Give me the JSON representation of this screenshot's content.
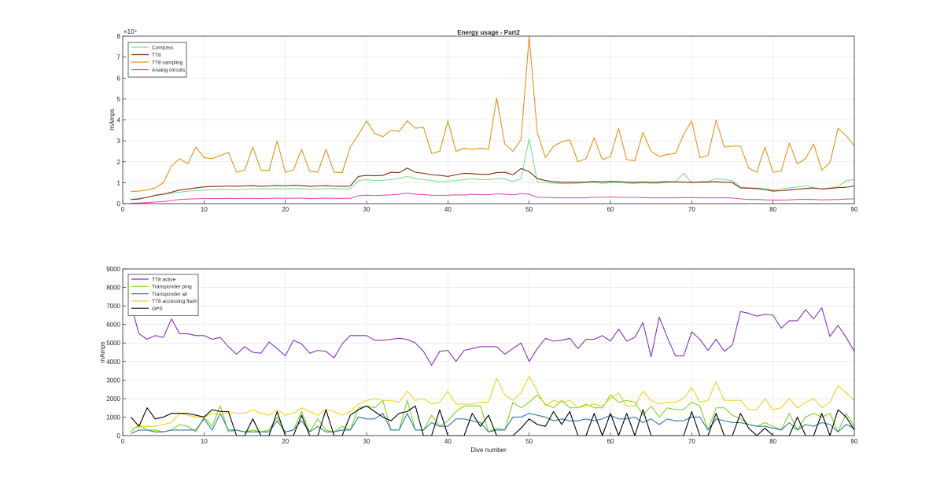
{
  "chart_data": [
    {
      "type": "line",
      "title": "Energy usage - Part2",
      "xlabel": "",
      "ylabel": "mAmps",
      "xlim": [
        0,
        90
      ],
      "ylim": [
        0,
        80000
      ],
      "yexponent_label": "×10⁴",
      "xticks": [
        0,
        10,
        20,
        30,
        40,
        50,
        60,
        70,
        80,
        90
      ],
      "yticks": [
        0,
        10000,
        20000,
        30000,
        40000,
        50000,
        60000,
        70000,
        80000
      ],
      "ytick_labels": [
        "0",
        "1",
        "2",
        "3",
        "4",
        "5",
        "6",
        "7",
        "8"
      ],
      "grid": true,
      "legend_position": "top-left",
      "x": [
        1,
        2,
        3,
        4,
        5,
        6,
        7,
        8,
        9,
        10,
        11,
        12,
        13,
        14,
        15,
        16,
        17,
        18,
        19,
        20,
        21,
        22,
        23,
        24,
        25,
        26,
        27,
        28,
        29,
        30,
        31,
        32,
        33,
        34,
        35,
        36,
        37,
        38,
        39,
        40,
        41,
        42,
        43,
        44,
        45,
        46,
        47,
        48,
        49,
        50,
        51,
        52,
        53,
        54,
        55,
        56,
        57,
        58,
        59,
        60,
        61,
        62,
        63,
        64,
        65,
        66,
        67,
        68,
        69,
        70,
        71,
        72,
        73,
        74,
        75,
        76,
        77,
        78,
        79,
        80,
        81,
        82,
        83,
        84,
        85,
        86,
        87,
        88,
        89,
        90
      ],
      "series": [
        {
          "name": "Compass",
          "color": "#7ee08a",
          "values": [
            2000,
            2500,
            3000,
            4000,
            4500,
            5000,
            5500,
            6000,
            6200,
            6500,
            6600,
            6800,
            6700,
            6600,
            6900,
            7000,
            7000,
            7100,
            7200,
            7000,
            7100,
            7200,
            6900,
            7000,
            7100,
            7200,
            7000,
            7000,
            11000,
            11500,
            11000,
            11200,
            11500,
            12000,
            13000,
            12000,
            11500,
            11000,
            10500,
            10800,
            11000,
            11500,
            11800,
            11500,
            11500,
            11800,
            12000,
            10500,
            12000,
            31000,
            10500,
            10000,
            9800,
            9600,
            9500,
            9800,
            10000,
            10200,
            9700,
            10000,
            10200,
            9800,
            9600,
            10000,
            9800,
            9800,
            10200,
            10500,
            14500,
            10000,
            10500,
            10600,
            12000,
            11500,
            11000,
            8000,
            7500,
            7500,
            7000,
            6500,
            7000,
            7500,
            8000,
            8500,
            7500,
            7000,
            7500,
            8000,
            11000,
            11500
          ]
        },
        {
          "name": "TT8",
          "color": "#7a2e0e",
          "values": [
            2000,
            2200,
            3000,
            4000,
            4500,
            5500,
            6500,
            7000,
            7500,
            8000,
            8200,
            8300,
            8400,
            8300,
            8500,
            8600,
            8300,
            8500,
            8700,
            8500,
            8800,
            8600,
            8300,
            8500,
            8600,
            8400,
            8300,
            8400,
            13000,
            13500,
            13300,
            13500,
            15000,
            14800,
            17000,
            15000,
            14500,
            13800,
            13500,
            13000,
            13800,
            14500,
            14300,
            14000,
            14000,
            14800,
            15000,
            13800,
            16800,
            15300,
            12000,
            11000,
            10500,
            10200,
            10300,
            10200,
            10300,
            10600,
            10400,
            10600,
            10500,
            10300,
            10200,
            10300,
            10100,
            10300,
            10500,
            10400,
            10300,
            10200,
            10200,
            10300,
            10500,
            10200,
            10100,
            7500,
            7400,
            7200,
            6800,
            6000,
            6200,
            6500,
            6900,
            7200,
            7500,
            7000,
            7300,
            7600,
            7800,
            8500
          ]
        },
        {
          "name": "TT8 sampling",
          "color": "#e8911c",
          "values": [
            5800,
            6000,
            6500,
            7500,
            10000,
            18000,
            21500,
            19000,
            27000,
            22000,
            21500,
            23000,
            24500,
            15000,
            16000,
            27000,
            16000,
            15800,
            30000,
            15000,
            16000,
            26000,
            15500,
            15000,
            26000,
            15000,
            14800,
            27000,
            33000,
            39500,
            33500,
            32000,
            35000,
            34500,
            39500,
            36000,
            36500,
            24000,
            25000,
            39500,
            25000,
            26500,
            26000,
            26500,
            26000,
            50500,
            28500,
            25000,
            30500,
            80000,
            34000,
            22000,
            27500,
            29500,
            30500,
            20000,
            21500,
            31500,
            21000,
            22500,
            36000,
            21000,
            20500,
            34000,
            25000,
            22500,
            23500,
            24000,
            33000,
            39500,
            22000,
            23000,
            40000,
            27000,
            27500,
            27500,
            17000,
            15000,
            27000,
            15000,
            15500,
            29000,
            19000,
            21500,
            28500,
            16000,
            19500,
            36000,
            32500,
            27500
          ]
        },
        {
          "name": "Analog circuits",
          "color": "#e24fb8",
          "values": [
            200,
            300,
            500,
            800,
            1000,
            1500,
            2000,
            2200,
            2300,
            2400,
            2400,
            2400,
            2500,
            2400,
            2500,
            2500,
            2400,
            2500,
            2600,
            2500,
            2600,
            2600,
            2400,
            2500,
            2600,
            2500,
            2500,
            2500,
            3800,
            4000,
            3900,
            4000,
            4200,
            4500,
            5000,
            4500,
            4300,
            4000,
            3900,
            4000,
            4200,
            4100,
            4500,
            4300,
            4300,
            4700,
            4500,
            4200,
            4800,
            4500,
            3000,
            3000,
            2800,
            2800,
            2800,
            2800,
            2800,
            3000,
            3000,
            3200,
            3000,
            3000,
            3000,
            2900,
            2800,
            2800,
            2800,
            2800,
            2900,
            2900,
            2800,
            2800,
            2800,
            2800,
            2700,
            2300,
            2000,
            2000,
            1800,
            1700,
            1700,
            1800,
            2000,
            2100,
            2000,
            1800,
            1900,
            2000,
            2200,
            2300
          ]
        }
      ]
    },
    {
      "type": "line",
      "title": "",
      "xlabel": "Dive number",
      "ylabel": "mAmps",
      "xlim": [
        0,
        90
      ],
      "ylim": [
        0,
        9000
      ],
      "xticks": [
        0,
        10,
        20,
        30,
        40,
        50,
        60,
        70,
        80,
        90
      ],
      "yticks": [
        0,
        1000,
        2000,
        3000,
        4000,
        5000,
        6000,
        7000,
        8000,
        9000
      ],
      "ytick_labels": [
        "0",
        "1000",
        "2000",
        "3000",
        "4000",
        "5000",
        "6000",
        "7000",
        "8000",
        "9000"
      ],
      "grid": true,
      "legend_position": "top-left",
      "x": [
        1,
        2,
        3,
        4,
        5,
        6,
        7,
        8,
        9,
        10,
        11,
        12,
        13,
        14,
        15,
        16,
        17,
        18,
        19,
        20,
        21,
        22,
        23,
        24,
        25,
        26,
        27,
        28,
        29,
        30,
        31,
        32,
        33,
        34,
        35,
        36,
        37,
        38,
        39,
        40,
        41,
        42,
        43,
        44,
        45,
        46,
        47,
        48,
        49,
        50,
        51,
        52,
        53,
        54,
        55,
        56,
        57,
        58,
        59,
        60,
        61,
        62,
        63,
        64,
        65,
        66,
        67,
        68,
        69,
        70,
        71,
        72,
        73,
        74,
        75,
        76,
        77,
        78,
        79,
        80,
        81,
        82,
        83,
        84,
        85,
        86,
        87,
        88,
        89,
        90
      ],
      "series": [
        {
          "name": "TT8 active",
          "color": "#8a2fc2",
          "values": [
            7100,
            5500,
            5200,
            5400,
            5300,
            6300,
            5500,
            5500,
            5400,
            5400,
            5200,
            5300,
            4800,
            4400,
            4800,
            4500,
            4450,
            5050,
            4700,
            4300,
            5150,
            4950,
            4450,
            4600,
            4550,
            4200,
            4950,
            5400,
            5400,
            5400,
            5150,
            5150,
            5200,
            5250,
            5200,
            5000,
            4550,
            3800,
            4550,
            4600,
            4000,
            4600,
            4700,
            4800,
            4800,
            4800,
            4400,
            4700,
            5000,
            4000,
            4700,
            5250,
            5100,
            5150,
            5250,
            4700,
            5200,
            5200,
            5400,
            5100,
            5750,
            5100,
            5300,
            6100,
            4250,
            6400,
            5300,
            4300,
            4300,
            5600,
            5200,
            4600,
            5200,
            4550,
            4900,
            6700,
            6600,
            6450,
            6550,
            6500,
            5800,
            6200,
            6200,
            6800,
            6300,
            6900,
            5350,
            5950,
            5300,
            4550
          ]
        },
        {
          "name": "Transponder ping",
          "color": "#7ed321",
          "values": [
            200,
            600,
            300,
            300,
            200,
            300,
            600,
            500,
            200,
            1000,
            500,
            1600,
            200,
            300,
            200,
            300,
            200,
            300,
            1000,
            200,
            300,
            1300,
            200,
            900,
            300,
            200,
            500,
            300,
            1500,
            1600,
            1500,
            1900,
            300,
            300,
            1900,
            300,
            300,
            1100,
            500,
            800,
            1300,
            1600,
            1600,
            1600,
            200,
            400,
            300,
            1800,
            1500,
            1800,
            2200,
            1700,
            1500,
            1900,
            1500,
            1500,
            1700,
            1500,
            1500,
            2200,
            1800,
            1900,
            1800,
            1100,
            1600,
            1000,
            1500,
            1400,
            1400,
            1800,
            1600,
            300,
            1500,
            1500,
            1100,
            900,
            600,
            500,
            700,
            500,
            300,
            1200,
            300,
            1000,
            1200,
            1000,
            1200,
            200,
            1200,
            500
          ]
        },
        {
          "name": "Transponder all",
          "color": "#2e7bab",
          "values": [
            100,
            300,
            300,
            200,
            200,
            300,
            300,
            300,
            300,
            900,
            300,
            1200,
            300,
            300,
            200,
            200,
            200,
            200,
            800,
            200,
            300,
            800,
            200,
            500,
            200,
            200,
            300,
            300,
            1000,
            900,
            900,
            1200,
            300,
            300,
            1200,
            300,
            300,
            700,
            500,
            500,
            900,
            900,
            800,
            700,
            200,
            300,
            300,
            1000,
            1000,
            1200,
            1100,
            1000,
            800,
            900,
            800,
            800,
            900,
            800,
            900,
            1100,
            900,
            900,
            1000,
            700,
            900,
            600,
            900,
            800,
            800,
            1000,
            1000,
            300,
            900,
            800,
            700,
            700,
            600,
            500,
            500,
            400,
            300,
            700,
            300,
            600,
            500,
            700,
            600,
            200,
            600,
            400
          ]
        },
        {
          "name": "TT8 accessing flash",
          "color": "#f2d11b",
          "values": [
            400,
            450,
            500,
            500,
            600,
            700,
            1200,
            1100,
            1000,
            1000,
            1200,
            1100,
            1300,
            1200,
            1200,
            1400,
            1200,
            1100,
            1400,
            1100,
            1200,
            1500,
            1300,
            1100,
            1400,
            1300,
            1100,
            1300,
            1700,
            1900,
            2000,
            1900,
            1900,
            1800,
            2400,
            1900,
            2000,
            1700,
            1800,
            2400,
            1700,
            1700,
            1700,
            1800,
            1800,
            3100,
            2200,
            1900,
            2300,
            3200,
            2400,
            1600,
            1900,
            1800,
            1900,
            1500,
            1600,
            1700,
            1600,
            2000,
            2300,
            1600,
            1600,
            2400,
            1900,
            1700,
            1800,
            1800,
            2000,
            2600,
            1800,
            1900,
            2900,
            1900,
            1900,
            1900,
            1400,
            1400,
            2000,
            1400,
            1500,
            2000,
            1500,
            1800,
            2000,
            1500,
            1800,
            2700,
            2300,
            1900
          ]
        },
        {
          "name": "GPS",
          "color": "#000000",
          "values": [
            1000,
            500,
            1500,
            900,
            1000,
            1200,
            1200,
            1200,
            1100,
            1000,
            1400,
            1300,
            1300,
            0,
            0,
            900,
            0,
            0,
            1300,
            0,
            0,
            1100,
            0,
            0,
            1400,
            0,
            0,
            1100,
            1400,
            1600,
            1300,
            1000,
            800,
            1200,
            1300,
            1600,
            0,
            0,
            1400,
            0,
            0,
            0,
            1200,
            500,
            1100,
            0,
            0,
            0,
            400,
            900,
            600,
            500,
            1300,
            600,
            1300,
            0,
            0,
            1200,
            0,
            1200,
            0,
            1200,
            0,
            1400,
            0,
            0,
            0,
            0,
            0,
            1300,
            0,
            0,
            1200,
            0,
            0,
            1200,
            400,
            0,
            400,
            0,
            0,
            0,
            1000,
            0,
            0,
            1200,
            0,
            1400,
            1000,
            300
          ]
        }
      ]
    }
  ]
}
